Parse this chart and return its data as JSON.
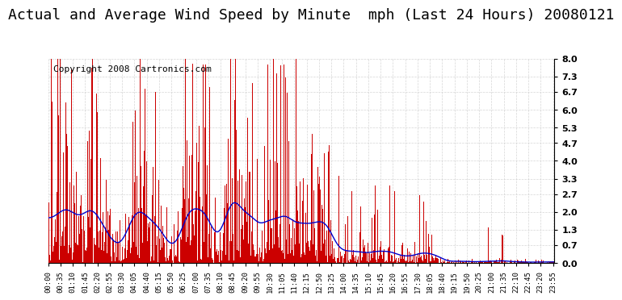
{
  "title": "Actual and Average Wind Speed by Minute  mph (Last 24 Hours) 20080121",
  "copyright": "Copyright 2008 Cartronics.com",
  "yticks": [
    0.0,
    0.7,
    1.3,
    2.0,
    2.7,
    3.3,
    4.0,
    4.7,
    5.3,
    6.0,
    6.7,
    7.3,
    8.0
  ],
  "ylim": [
    0.0,
    8.0
  ],
  "bar_color": "#cc0000",
  "line_color": "#0000cc",
  "bg_color": "#ffffff",
  "grid_color": "#cccccc",
  "title_fontsize": 13,
  "copyright_fontsize": 8,
  "xtick_interval_minutes": 35,
  "total_minutes": 1440
}
